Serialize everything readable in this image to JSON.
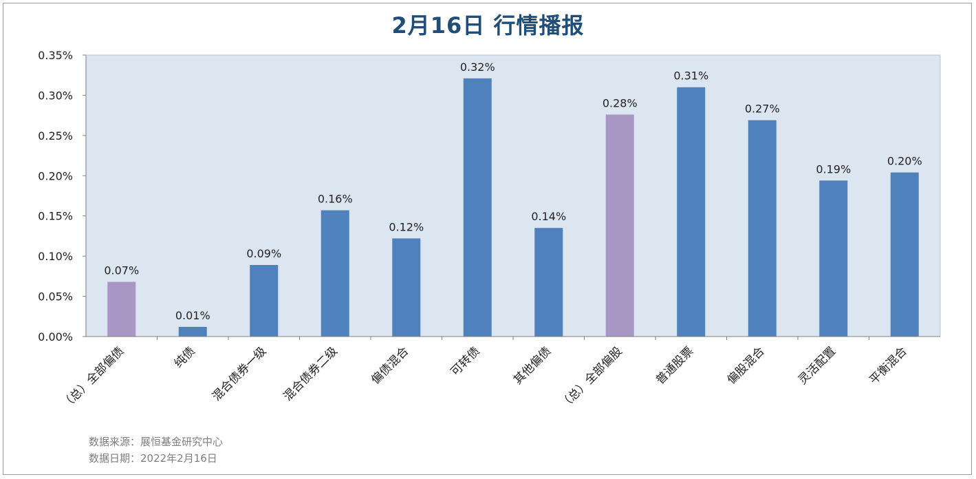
{
  "title": "2月16日   行情播报",
  "footer": {
    "source": "数据来源：展恒基金研究中心",
    "date": "数据日期：2022年2月16日"
  },
  "colors": {
    "plot_bg": "#dce6f1",
    "bar_blue": "#4f81bd",
    "bar_purple": "#a896c4",
    "title": "#1f4e79"
  },
  "chart_data": {
    "type": "bar",
    "title": "2月16日   行情播报",
    "xlabel": "",
    "ylabel": "",
    "ylim": [
      0,
      0.35
    ],
    "yticks": [
      "0.00%",
      "0.05%",
      "0.10%",
      "0.15%",
      "0.20%",
      "0.25%",
      "0.30%",
      "0.35%"
    ],
    "grid": false,
    "categories": [
      "（总）全部偏债",
      "纯债",
      "混合债券一级",
      "混合债券二级",
      "偏债混合",
      "可转债",
      "其他偏债",
      "（总）全部偏股",
      "普通股票",
      "偏股混合",
      "灵活配置",
      "平衡混合"
    ],
    "values": [
      0.068,
      0.012,
      0.089,
      0.157,
      0.122,
      0.321,
      0.135,
      0.276,
      0.31,
      0.269,
      0.194,
      0.204
    ],
    "labels": [
      "0.07%",
      "0.01%",
      "0.09%",
      "0.16%",
      "0.12%",
      "0.32%",
      "0.14%",
      "0.28%",
      "0.31%",
      "0.27%",
      "0.19%",
      "0.20%"
    ],
    "bar_colors": [
      "purple",
      "blue",
      "blue",
      "blue",
      "blue",
      "blue",
      "blue",
      "purple",
      "blue",
      "blue",
      "blue",
      "blue"
    ]
  }
}
